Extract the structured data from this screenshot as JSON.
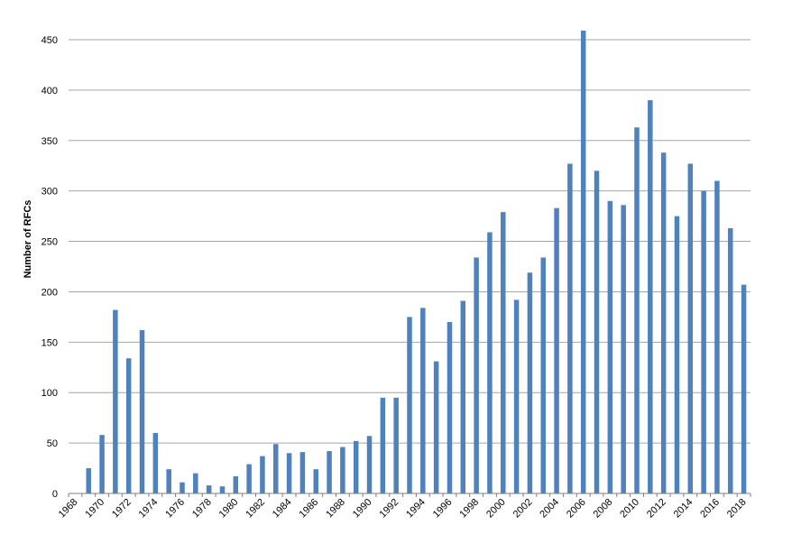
{
  "chart_data": {
    "type": "bar",
    "title": "",
    "xlabel": "",
    "ylabel": "Number of RFCs",
    "ylim": [
      0,
      450
    ],
    "yticks": [
      0,
      50,
      100,
      150,
      200,
      250,
      300,
      350,
      400,
      450
    ],
    "grid": "horizontal",
    "bar_color": "#4f81bd",
    "categories": [
      "1968",
      "1969",
      "1970",
      "1971",
      "1972",
      "1973",
      "1974",
      "1975",
      "1976",
      "1977",
      "1978",
      "1979",
      "1980",
      "1981",
      "1982",
      "1983",
      "1984",
      "1985",
      "1986",
      "1987",
      "1988",
      "1989",
      "1990",
      "1991",
      "1992",
      "1993",
      "1994",
      "1995",
      "1996",
      "1997",
      "1998",
      "1999",
      "2000",
      "2001",
      "2002",
      "2003",
      "2004",
      "2005",
      "2006",
      "2007",
      "2008",
      "2009",
      "2010",
      "2011",
      "2012",
      "2013",
      "2014",
      "2015",
      "2016",
      "2017",
      "2018"
    ],
    "x_tick_labels": [
      "1968",
      "1970",
      "1972",
      "1974",
      "1976",
      "1978",
      "1980",
      "1982",
      "1984",
      "1986",
      "1988",
      "1990",
      "1992",
      "1994",
      "1996",
      "1998",
      "2000",
      "2002",
      "2004",
      "2006",
      "2008",
      "2010",
      "2012",
      "2014",
      "2016",
      "2018"
    ],
    "values": [
      0,
      25,
      58,
      182,
      134,
      162,
      60,
      24,
      11,
      20,
      8,
      7,
      17,
      29,
      37,
      49,
      40,
      41,
      24,
      42,
      46,
      52,
      57,
      95,
      95,
      175,
      184,
      131,
      170,
      191,
      234,
      259,
      279,
      192,
      219,
      234,
      283,
      327,
      459,
      320,
      290,
      286,
      363,
      390,
      338,
      275,
      327,
      300,
      310,
      263,
      207
    ]
  }
}
